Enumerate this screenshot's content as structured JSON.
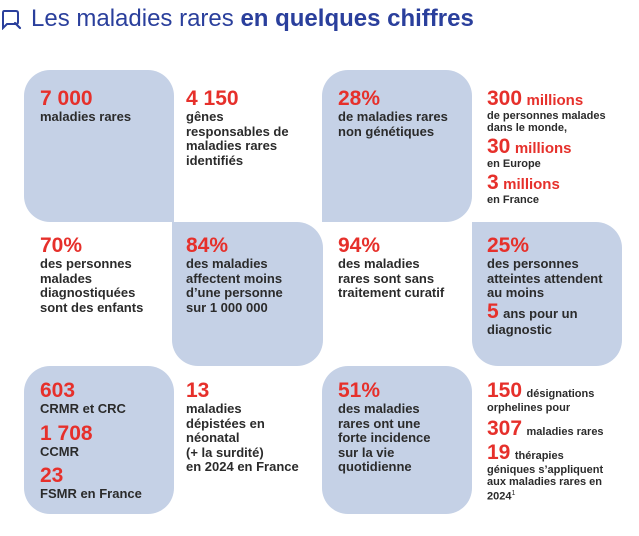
{
  "header": {
    "title_light": "Les maladies rares ",
    "title_bold": "en quelques chiffres",
    "icon": "search-bubble-icon",
    "title_color": "#2a3f9c"
  },
  "colors": {
    "accent": "#e6302b",
    "blob": "#c5d1e6",
    "text": "#2b2b2b"
  },
  "stats": {
    "maladies_rares": {
      "value": "7 000",
      "label": "maladies rares"
    },
    "genes": {
      "value": "4 150",
      "label1": "gênes",
      "label2": "responsables de",
      "label3": "maladies rares",
      "label4": "identifiés"
    },
    "non_genetiques": {
      "value": "28%",
      "label1": "de maladies rares",
      "label2": "non génétiques"
    },
    "personnes": {
      "world_value": "300",
      "world_unit": "millions",
      "world_label1": "de personnes malades",
      "world_label2": "dans le monde,",
      "europe_value": "30",
      "europe_unit": "millions",
      "europe_label": "en Europe",
      "france_value": "3",
      "france_unit": "millions",
      "france_label": "en France"
    },
    "enfants": {
      "value": "70%",
      "label1": "des personnes",
      "label2": "malades",
      "label3": "diagnostiquées",
      "label4": "sont des enfants"
    },
    "affectent": {
      "value": "84%",
      "label1": "des maladies",
      "label2": "affectent moins",
      "label3": "d’une personne",
      "label4": "sur 1 000 000"
    },
    "sans_traitement": {
      "value": "94%",
      "label1": "des maladies",
      "label2": "rares sont sans",
      "label3": "traitement curatif"
    },
    "diagnostic": {
      "value": "25%",
      "label1": "des personnes",
      "label2": "atteintes attendent",
      "label3": "au moins",
      "years_value": "5",
      "years_label": "ans pour un",
      "label4": "diagnostic"
    },
    "centres": {
      "crmr_value": "603",
      "crmr_label": "CRMR et CRC",
      "ccmr_value": "1 708",
      "ccmr_label": "CCMR",
      "fsmr_value": "23",
      "fsmr_label": "FSMR en France"
    },
    "depistees": {
      "value": "13",
      "label1": "maladies",
      "label2": "dépistées en",
      "label3": "néonatal",
      "label4": "(+ la surdité)",
      "label5": "en 2024 en France"
    },
    "forte_incidence": {
      "value": "51%",
      "label1": "des maladies",
      "label2": "rares ont une",
      "label3": "forte incidence",
      "label4": "sur la vie",
      "label5": "quotidienne"
    },
    "orphelines": {
      "designations_value": "150",
      "designations_label1": "désignations",
      "designations_label2": "orphelines pour",
      "maladies_value": "307",
      "maladies_label": "maladies rares",
      "therapies_value": "19",
      "therapies_label1": "thérapies",
      "therapies_label2": "géniques s’appliquent",
      "therapies_label3": "aux maladies rares en",
      "therapies_label4": "2024",
      "therapies_sup": "1"
    }
  }
}
